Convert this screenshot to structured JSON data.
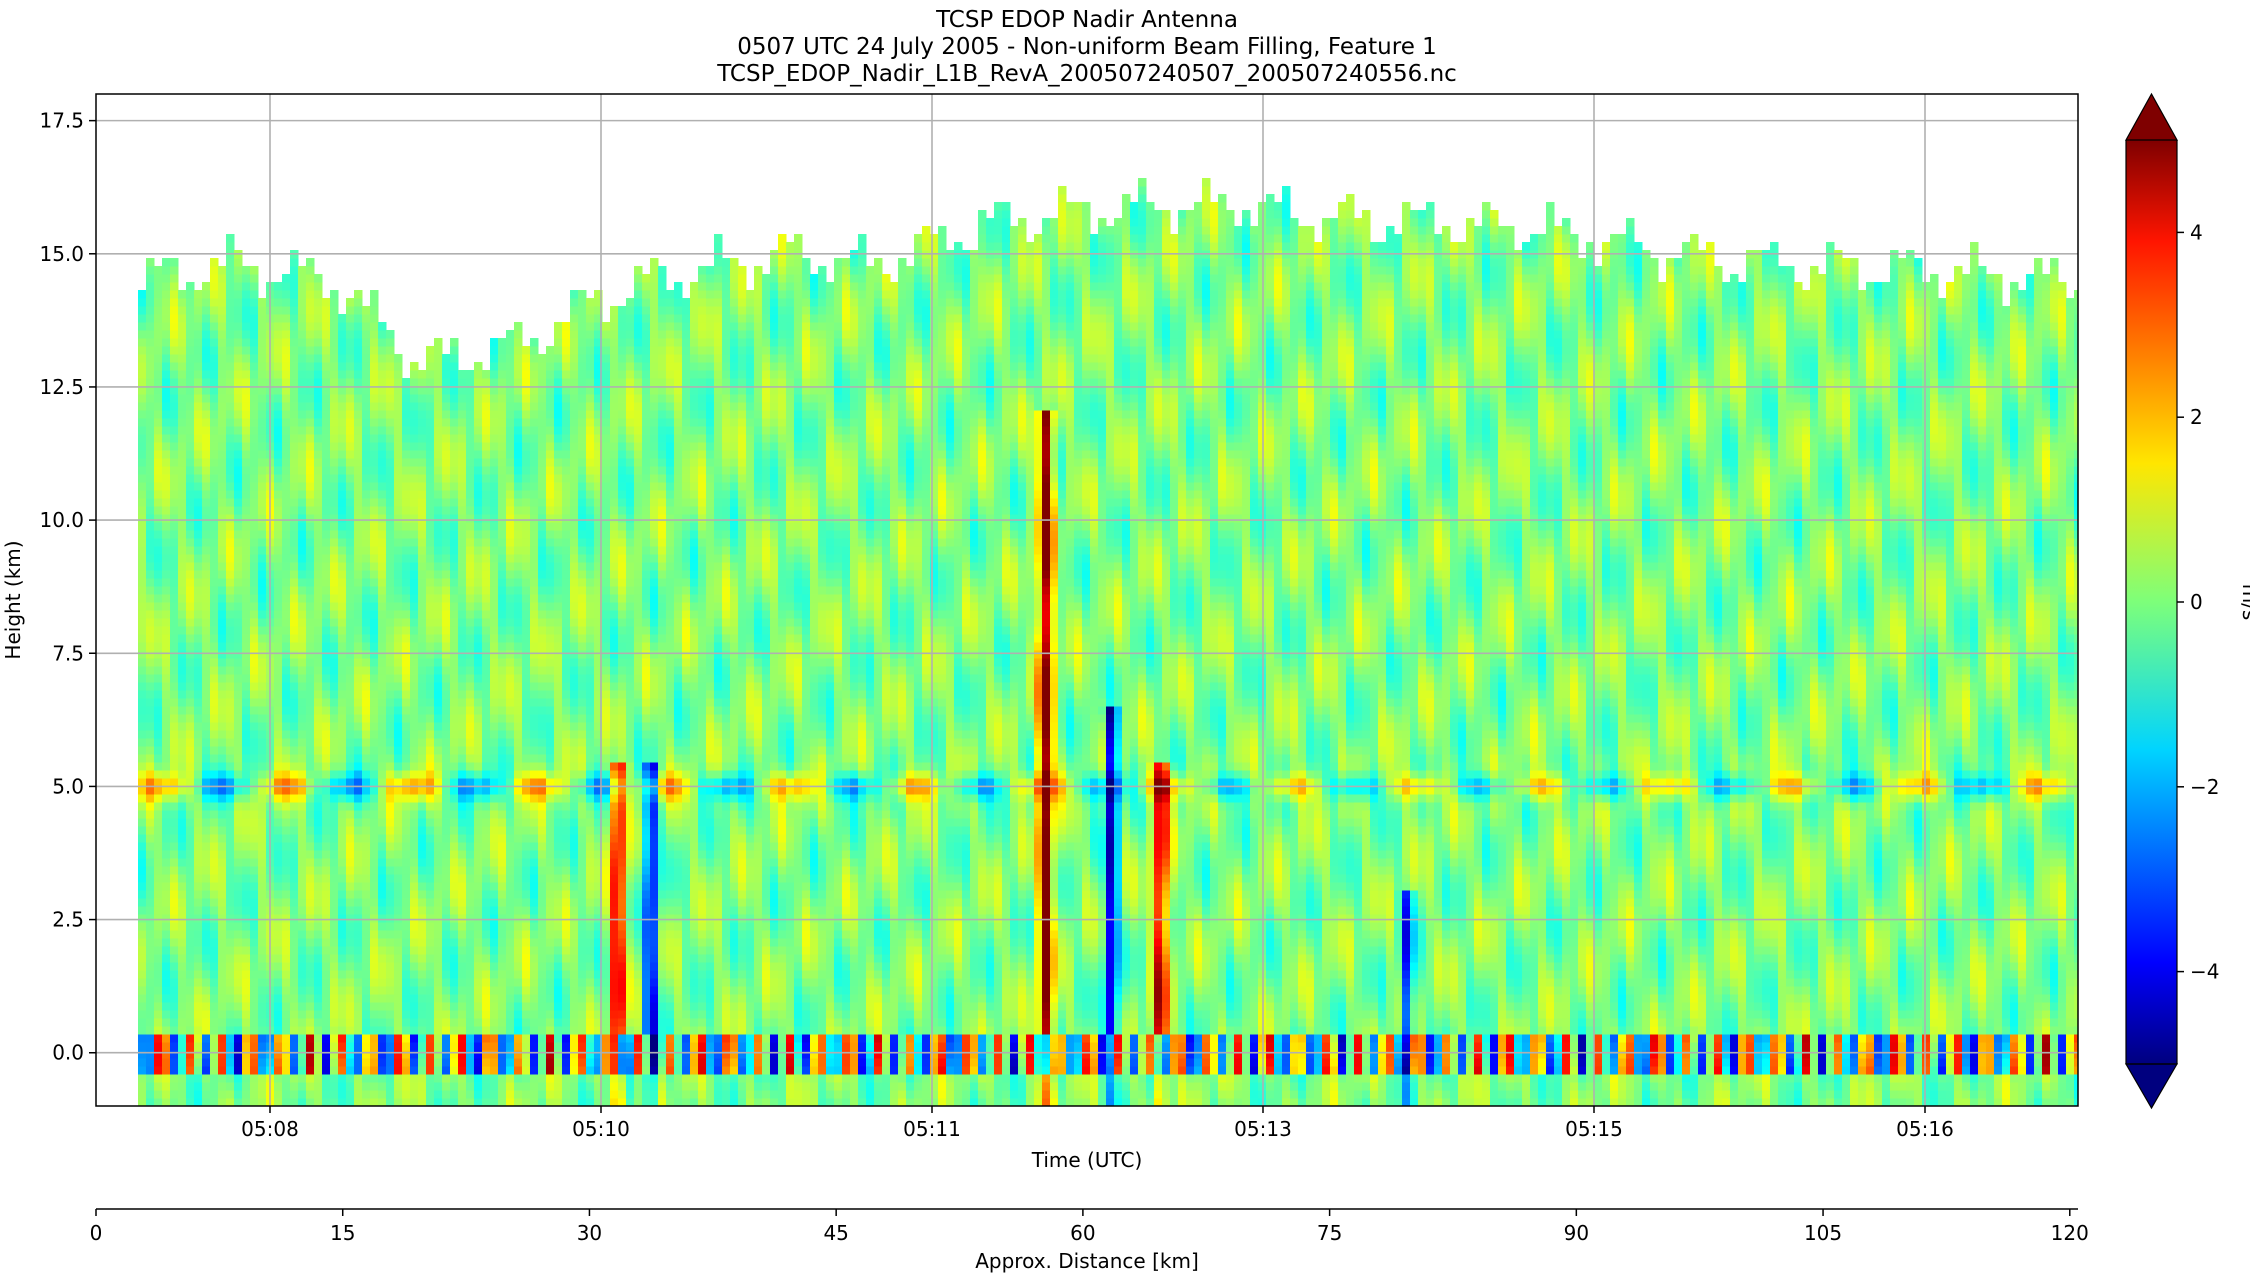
{
  "chart_data": {
    "type": "heatmap",
    "title_lines": [
      "TCSP EDOP Nadir Antenna",
      "0507 UTC 24 July 2005 - Non-uniform Beam Filling, Feature 1",
      "TCSP_EDOP_Nadir_L1B_RevA_200507240507_200507240556.nc"
    ],
    "xlabel": "Time (UTC)",
    "ylabel": "Height (km)",
    "xlabel2": "Approx. Distance [km]",
    "colorbar_label": "m/s",
    "colormap": "jet",
    "color_range": [
      -5,
      5
    ],
    "colorbar_extend": "both",
    "grid": true,
    "x_ticks": [
      "05:08",
      "05:10",
      "05:11",
      "05:13",
      "05:15",
      "05:16"
    ],
    "y_ticks": [
      "0.0",
      "2.5",
      "5.0",
      "7.5",
      "10.0",
      "12.5",
      "15.0",
      "17.5"
    ],
    "y_tick_values": [
      0,
      2.5,
      5,
      7.5,
      10,
      12.5,
      15,
      17.5
    ],
    "ylim": [
      -1,
      18
    ],
    "x2_ticks": [
      "0",
      "15",
      "30",
      "45",
      "60",
      "75",
      "90",
      "105",
      "120"
    ],
    "x2_tick_values": [
      0,
      15,
      30,
      45,
      60,
      75,
      90,
      105,
      120
    ],
    "x2lim": [
      0,
      120.5
    ],
    "colorbar_ticks": [
      "4",
      "2",
      "0",
      "−2",
      "−4"
    ],
    "colorbar_tick_values": [
      4,
      2,
      0,
      -2,
      -4
    ],
    "features": {
      "echo_top_km": [
        14.5,
        14.8,
        14.6,
        13.0,
        13.2,
        14.2,
        14.7,
        15.0,
        14.8,
        15.5,
        15.8,
        15.9,
        15.9,
        15.6,
        15.6,
        15.5,
        15.2,
        14.9,
        14.8,
        14.7,
        14.6,
        14.5
      ],
      "surface_km": 0.0,
      "bright_band_km": 5.0,
      "updrafts": [
        {
          "distance_km": 31.5,
          "top_km": 5.5,
          "value": 4.5
        },
        {
          "distance_km": 57.5,
          "top_km": 12.0,
          "value": 5.0
        },
        {
          "distance_km": 64.5,
          "top_km": 5.5,
          "value": 4.5
        }
      ],
      "downdrafts": [
        {
          "distance_km": 33.5,
          "top_km": 5.5,
          "value": -4.5
        },
        {
          "distance_km": 61.5,
          "top_km": 6.5,
          "value": -4.5
        },
        {
          "distance_km": 79.5,
          "top_km": 3.0,
          "value": -3.5
        }
      ]
    }
  }
}
